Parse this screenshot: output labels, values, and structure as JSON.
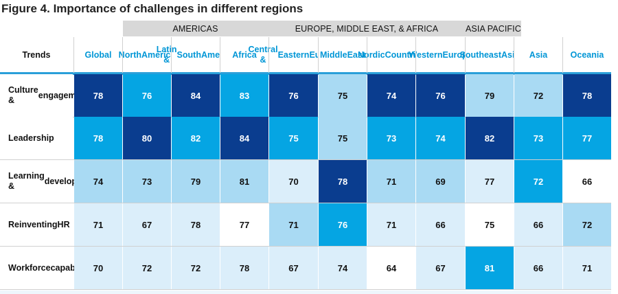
{
  "title": "Figure 4. Importance of challenges in different regions",
  "chart_data": {
    "type": "table",
    "row_header_label": "Trends",
    "groups": [
      {
        "name": "AMERICAS",
        "start_col": 1,
        "span": 2
      },
      {
        "name": "EUROPE, MIDDLE EAST, & AFRICA",
        "start_col": 3,
        "span": 5
      },
      {
        "name": "ASIA PACIFIC",
        "start_col": 8,
        "span": 3
      }
    ],
    "columns": [
      [
        "Global"
      ],
      [
        "North",
        "America"
      ],
      [
        "Latin &",
        "South",
        "America"
      ],
      [
        "Africa"
      ],
      [
        "Central &",
        "Eastern",
        "Europe"
      ],
      [
        "Middle",
        "East"
      ],
      [
        "Nordic",
        "Countries"
      ],
      [
        "Western",
        "Europe"
      ],
      [
        "Southeast",
        "Asia"
      ],
      [
        "Asia"
      ],
      [
        "Oceania"
      ]
    ],
    "rows": [
      {
        "label": [
          "Culture &",
          "engagement"
        ],
        "values": [
          78,
          76,
          84,
          83,
          76,
          75,
          74,
          76,
          79,
          72,
          78
        ],
        "shades": [
          4,
          3,
          4,
          3,
          4,
          2,
          4,
          4,
          2,
          2,
          4
        ]
      },
      {
        "label": [
          "Leadership"
        ],
        "values": [
          78,
          80,
          82,
          84,
          75,
          75,
          73,
          74,
          82,
          73,
          77
        ],
        "shades": [
          3,
          4,
          3,
          4,
          3,
          2,
          3,
          3,
          4,
          3,
          3
        ]
      },
      {
        "label": [
          "Learning &",
          "development"
        ],
        "values": [
          74,
          73,
          79,
          81,
          70,
          78,
          71,
          69,
          77,
          72,
          66
        ],
        "shades": [
          2,
          2,
          2,
          2,
          1,
          4,
          2,
          2,
          1,
          3,
          0
        ]
      },
      {
        "label": [
          "Reinventing",
          "HR"
        ],
        "values": [
          71,
          67,
          78,
          77,
          71,
          76,
          71,
          66,
          75,
          66,
          72
        ],
        "shades": [
          1,
          1,
          1,
          0,
          2,
          3,
          1,
          1,
          0,
          1,
          2
        ]
      },
      {
        "label": [
          "Workforce",
          "capability"
        ],
        "values": [
          70,
          72,
          72,
          78,
          67,
          74,
          64,
          67,
          81,
          66,
          71
        ],
        "shades": [
          1,
          1,
          1,
          1,
          1,
          1,
          0,
          1,
          3,
          1,
          1
        ]
      }
    ],
    "palette": {
      "0": {
        "bg": "#ffffff",
        "fg": "#111111"
      },
      "1": {
        "bg": "#dbeefa",
        "fg": "#111111"
      },
      "2": {
        "bg": "#a9daf3",
        "fg": "#111111"
      },
      "3": {
        "bg": "#05a5e3",
        "fg": "#ffffff"
      },
      "4": {
        "bg": "#0a3d8f",
        "fg": "#ffffff"
      }
    },
    "header_accent_color": "#0096d6"
  }
}
